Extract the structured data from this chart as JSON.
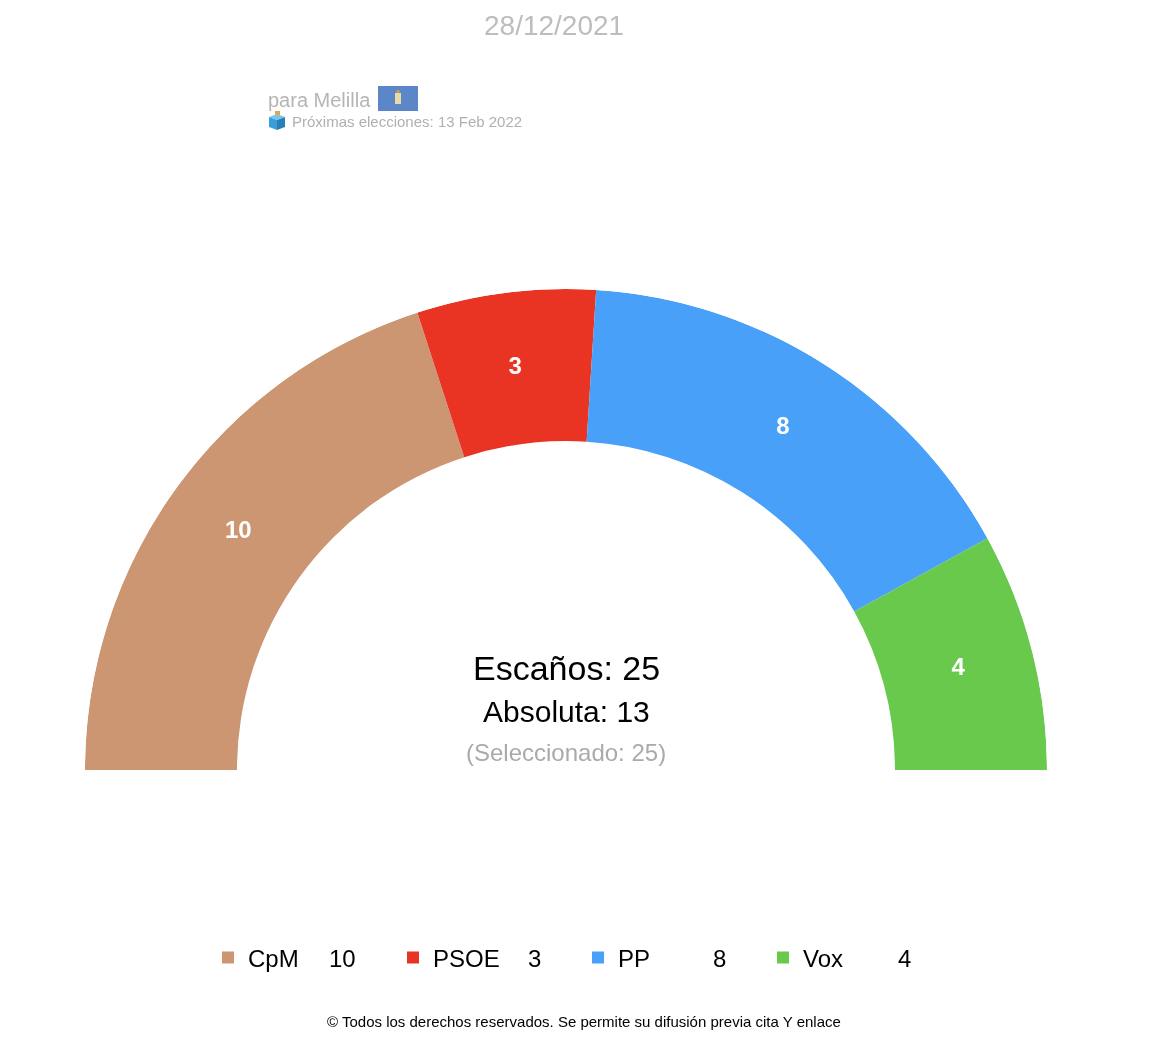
{
  "chart_data": {
    "type": "donut",
    "title": "28/12/2021",
    "subtitle": "para Melilla",
    "annotations": [
      "Próximas elecciones: 13 Feb 2022",
      "Escaños: 25",
      "Absoluta: 13",
      "(Seleccionado: 25)",
      "© Todos los derechos reservados. Se permite su difusión previa cita Y enlace",
      "10",
      "3",
      "8",
      "4"
    ],
    "categories": [
      "CpM",
      "PSOE",
      "PP",
      "Vox"
    ],
    "values": [
      10,
      3,
      8,
      4
    ],
    "colors": [
      "#cc9673",
      "#e93323",
      "#48a0f8",
      "#68c94d"
    ],
    "data_labels": true,
    "legend": "bottom"
  }
}
